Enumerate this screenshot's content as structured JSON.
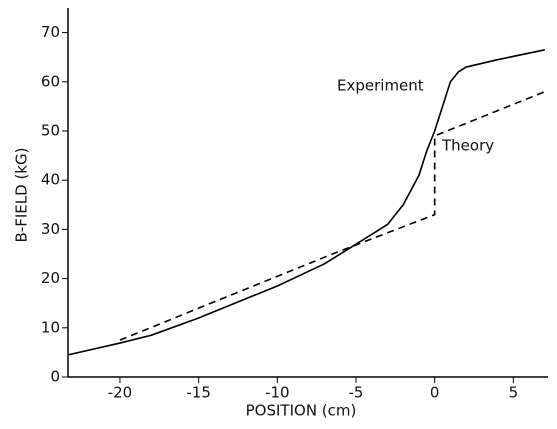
{
  "chart_data": {
    "type": "line",
    "xlabel": "POSITION (cm)",
    "ylabel": "B-FIELD (kG)",
    "xlim": [
      -23.3,
      7.2
    ],
    "ylim": [
      0,
      75
    ],
    "xticks": [
      -20,
      -15,
      -10,
      -5,
      0,
      5
    ],
    "yticks": [
      0,
      10,
      20,
      30,
      40,
      50,
      60,
      70
    ],
    "grid": false,
    "series": [
      {
        "name": "Experiment",
        "color": "#000000",
        "style": "solid",
        "x": [
          -23.3,
          -20,
          -18,
          -15,
          -10,
          -7,
          -5,
          -3,
          -2,
          -1,
          -0.5,
          0,
          0.5,
          1,
          1.5,
          2,
          4,
          7
        ],
        "values": [
          4.5,
          6.9,
          8.5,
          12,
          18.5,
          23,
          27,
          31,
          35,
          41,
          46,
          50,
          55,
          60,
          62,
          63,
          64.5,
          66.5
        ]
      },
      {
        "name": "Theory",
        "color": "#000000",
        "style": "dashed",
        "x": [
          -20,
          -6.5,
          0,
          0,
          7
        ],
        "values": [
          7.5,
          25,
          33,
          49,
          58
        ]
      }
    ]
  }
}
